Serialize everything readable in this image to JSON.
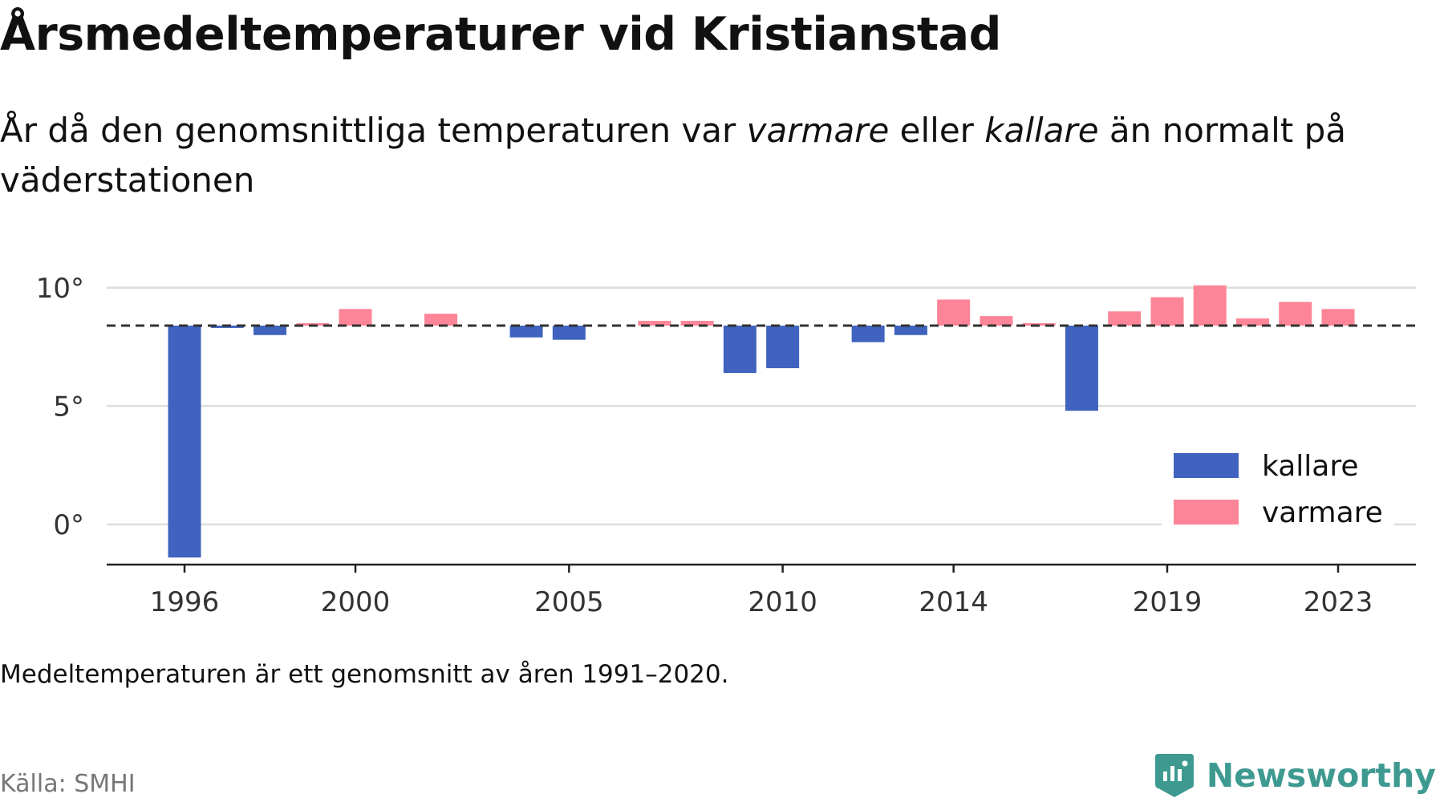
{
  "title": "Årsmedeltemperaturer vid Kristianstad",
  "subtitle": {
    "part1": "År då den genomsnittliga temperaturen var ",
    "warm": "varmare",
    "part2": " eller ",
    "cold": "kallare",
    "part3": " än normalt på väderstationen"
  },
  "footnote": "Medeltemperaturen är ett genomsnitt av åren 1991–2020.",
  "source": "Källa: SMHI",
  "brand": {
    "name": "Newsworthy",
    "icon": "newsworthy-logo-icon"
  },
  "colors": {
    "kallare": "#4063bf",
    "varmare": "#fd8597",
    "grid": "#dddddd",
    "axis": "#222222",
    "reference": "#333333",
    "brand": "#3e9a90"
  },
  "chart_data": {
    "type": "bar",
    "title": "",
    "xlabel": "",
    "ylabel": "",
    "ylim": [
      -1.7,
      10.5
    ],
    "baseline": 8.4,
    "baseline_style": "dashed",
    "grid": true,
    "y_ticks": [
      {
        "value": 10,
        "label": "10°"
      },
      {
        "value": 5,
        "label": "5°"
      },
      {
        "value": 0,
        "label": "0°"
      }
    ],
    "x_ticks": [
      1996,
      2000,
      2005,
      2010,
      2014,
      2019,
      2023
    ],
    "legend": {
      "placement": "bottom-right",
      "entries": [
        {
          "key": "kallare",
          "label": "kallare"
        },
        {
          "key": "varmare",
          "label": "varmare"
        }
      ]
    },
    "years": [
      1996,
      1997,
      1998,
      1999,
      2000,
      2001,
      2002,
      2003,
      2004,
      2005,
      2006,
      2007,
      2008,
      2009,
      2010,
      2011,
      2012,
      2013,
      2014,
      2015,
      2016,
      2017,
      2018,
      2019,
      2020,
      2021,
      2022,
      2023
    ],
    "values": [
      -1.4,
      8.3,
      8.0,
      8.5,
      9.1,
      null,
      8.9,
      null,
      7.9,
      7.8,
      null,
      8.6,
      8.6,
      6.4,
      6.6,
      null,
      7.7,
      8.0,
      9.5,
      8.8,
      8.5,
      4.8,
      9.0,
      9.6,
      10.1,
      8.7,
      9.4,
      9.1
    ]
  }
}
